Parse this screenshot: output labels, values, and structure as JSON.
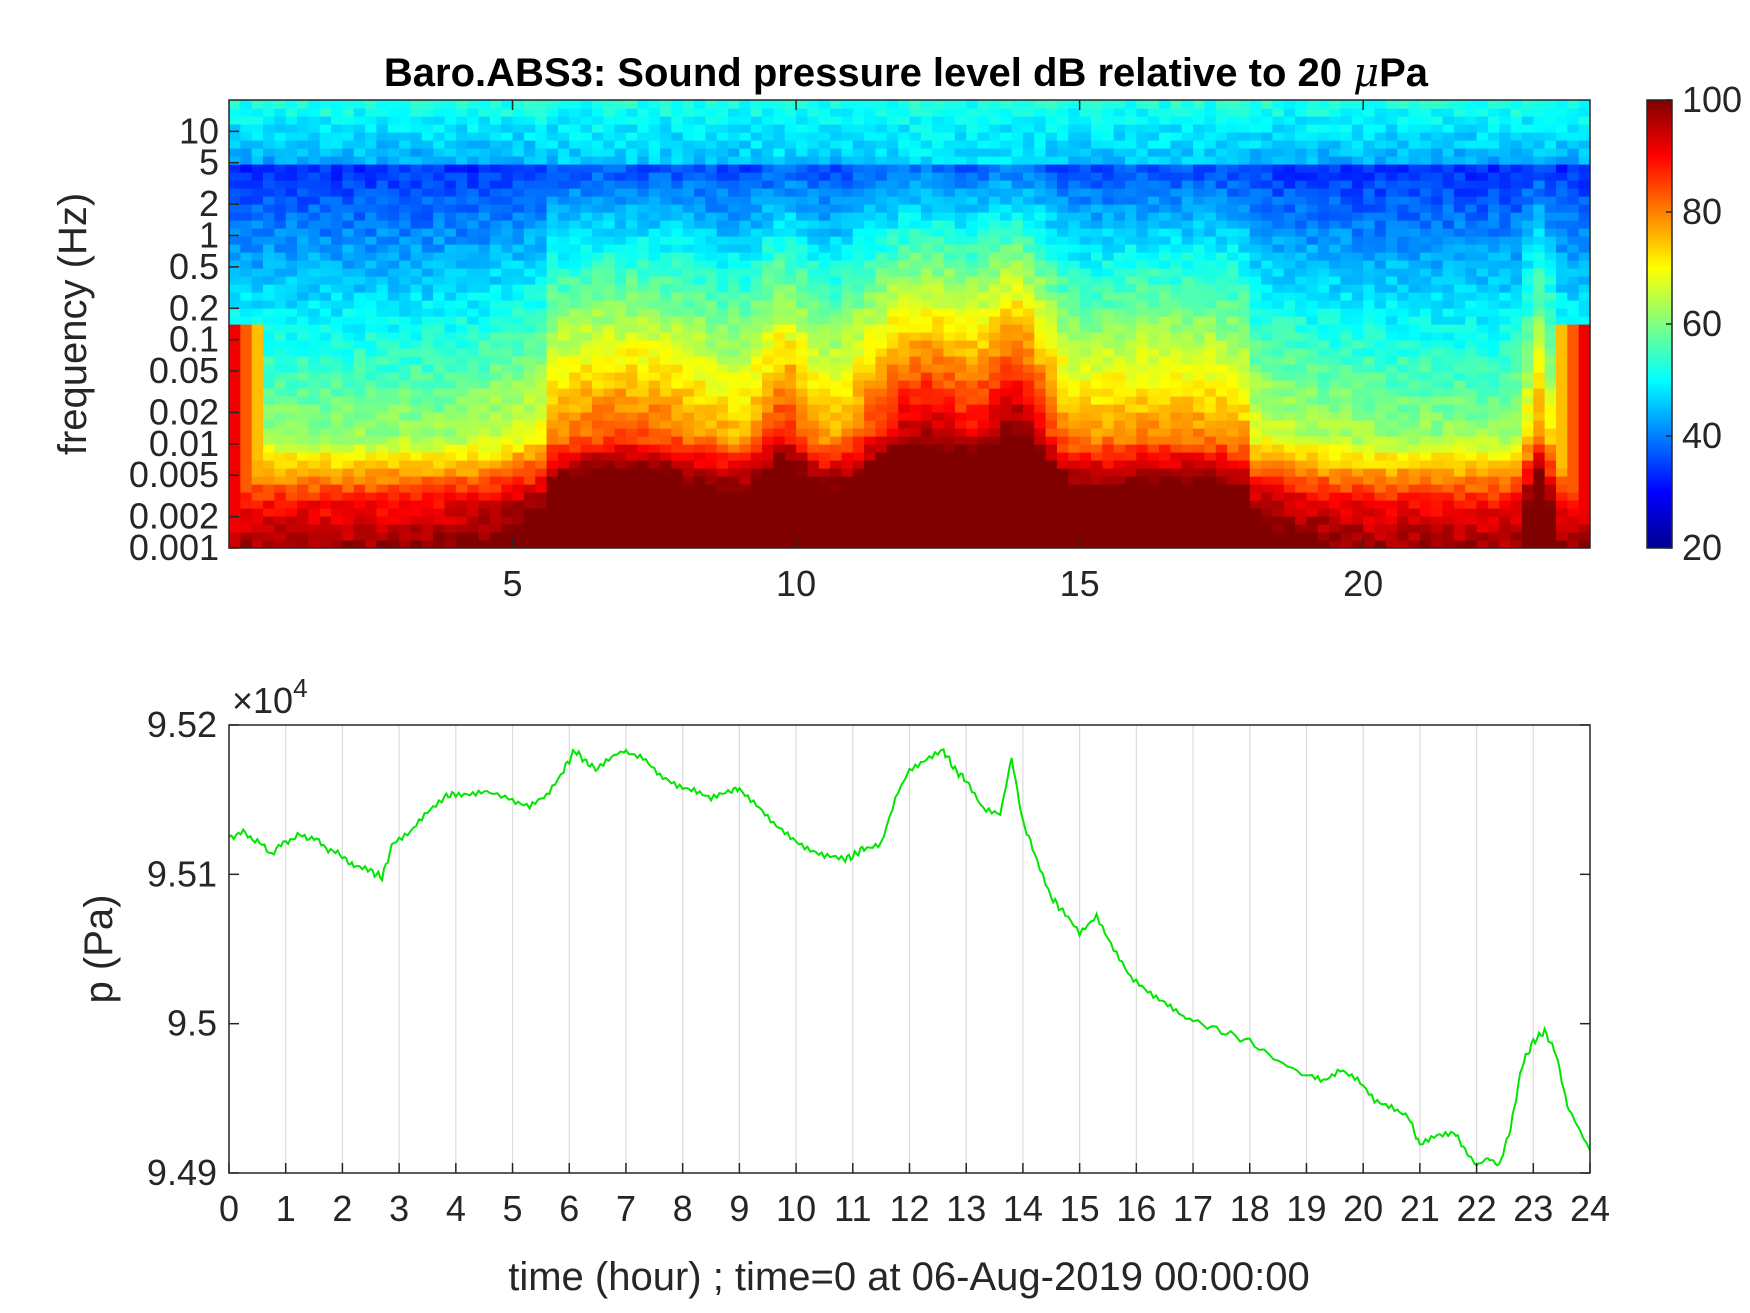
{
  "chart_data": [
    {
      "type": "heatmap",
      "title_prefix": "Baro.ABS3: Sound pressure level dB relative to 20 ",
      "title_mu": "μ",
      "title_suffix": "Pa",
      "xlabel": "",
      "ylabel": "frequency (Hz)",
      "x_range": [
        0,
        24
      ],
      "x_ticks": [
        5,
        10,
        15,
        20
      ],
      "y_scale": "log",
      "y_range": [
        0.001,
        20
      ],
      "y_ticks": [
        10,
        5,
        2,
        1,
        0.5,
        0.2,
        0.1,
        0.05,
        0.02,
        0.01,
        0.005,
        0.002,
        0.001
      ],
      "colormap": "jet",
      "colorbar": {
        "min": 20,
        "max": 100,
        "ticks": [
          100,
          80,
          60,
          40,
          20
        ]
      },
      "notes": "Levels ~100 dB at lowest frequencies, rising broadband energy (60-90 dB) between hours ~6 and ~15 peaking near hour 12-13, quiet (~30-40 dB) at 0.1-2 Hz early hours, high-frequency band ~50 dB, narrow spike near hour 23."
    },
    {
      "type": "line",
      "xlabel": "time (hour) ; time=0 at 06-Aug-2019 00:00:00",
      "ylabel": "p (Pa)",
      "y_exponent_label": "×10",
      "y_exponent": "4",
      "xlim": [
        0,
        24
      ],
      "ylim": [
        9.49,
        9.52
      ],
      "y_scale_factor": 10000,
      "grid": "x-only",
      "x_ticks": [
        0,
        1,
        2,
        3,
        4,
        5,
        6,
        7,
        8,
        9,
        10,
        11,
        12,
        13,
        14,
        15,
        16,
        17,
        18,
        19,
        20,
        21,
        22,
        23,
        24
      ],
      "y_ticks": [
        9.52,
        9.51,
        9.5,
        9.49
      ],
      "y_tick_labels": [
        "9.52",
        "9.51",
        "9.5",
        "9.49"
      ],
      "series": [
        {
          "color": "#00e600",
          "x": [
            0,
            0.25,
            0.5,
            0.75,
            1.0,
            1.25,
            1.5,
            1.75,
            2.0,
            2.2,
            2.5,
            2.7,
            2.9,
            3.2,
            3.5,
            3.8,
            4.0,
            4.3,
            4.6,
            5.0,
            5.3,
            5.6,
            5.9,
            6.1,
            6.3,
            6.5,
            6.8,
            7.0,
            7.3,
            7.6,
            7.9,
            8.2,
            8.5,
            8.8,
            9.0,
            9.3,
            9.6,
            9.9,
            10.2,
            10.5,
            10.8,
            11.0,
            11.2,
            11.5,
            11.8,
            12.0,
            12.3,
            12.6,
            12.8,
            13.0,
            13.3,
            13.6,
            13.8,
            14.0,
            14.2,
            14.5,
            14.7,
            15.0,
            15.3,
            15.6,
            15.9,
            16.2,
            16.5,
            16.8,
            17.0,
            17.5,
            18.0,
            18.5,
            19.0,
            19.3,
            19.6,
            19.9,
            20.2,
            20.5,
            20.8,
            21.0,
            21.3,
            21.6,
            21.8,
            22.0,
            22.2,
            22.4,
            22.6,
            22.8,
            23.0,
            23.2,
            23.4,
            23.6,
            23.8,
            24.0
          ],
          "y": [
            9.5125,
            9.5128,
            9.5122,
            9.5114,
            9.5122,
            9.5126,
            9.5124,
            9.5117,
            9.5112,
            9.5105,
            9.5102,
            9.5098,
            9.5122,
            9.5128,
            9.5141,
            9.5152,
            9.5154,
            9.5153,
            9.5155,
            9.515,
            9.5145,
            9.5152,
            9.517,
            9.5183,
            9.5175,
            9.517,
            9.518,
            9.5183,
            9.5178,
            9.5165,
            9.516,
            9.5157,
            9.515,
            9.5155,
            9.5158,
            9.5147,
            9.5133,
            9.5125,
            9.5118,
            9.5112,
            9.511,
            9.5112,
            9.5118,
            9.512,
            9.5155,
            9.517,
            9.5178,
            9.5183,
            9.517,
            9.5163,
            9.5145,
            9.514,
            9.5178,
            9.5135,
            9.5115,
            9.5085,
            9.5075,
            9.506,
            9.5073,
            9.505,
            9.503,
            9.5022,
            9.5015,
            9.5005,
            9.5002,
            9.4995,
            9.4988,
            9.4975,
            9.4965,
            9.4962,
            9.497,
            9.4962,
            9.4948,
            9.4945,
            9.4938,
            9.4918,
            9.4925,
            9.4928,
            9.4915,
            9.4905,
            9.491,
            9.4905,
            9.493,
            9.4972,
            9.4988,
            9.4995,
            9.498,
            9.4945,
            9.493,
            9.4915
          ]
        }
      ]
    }
  ]
}
